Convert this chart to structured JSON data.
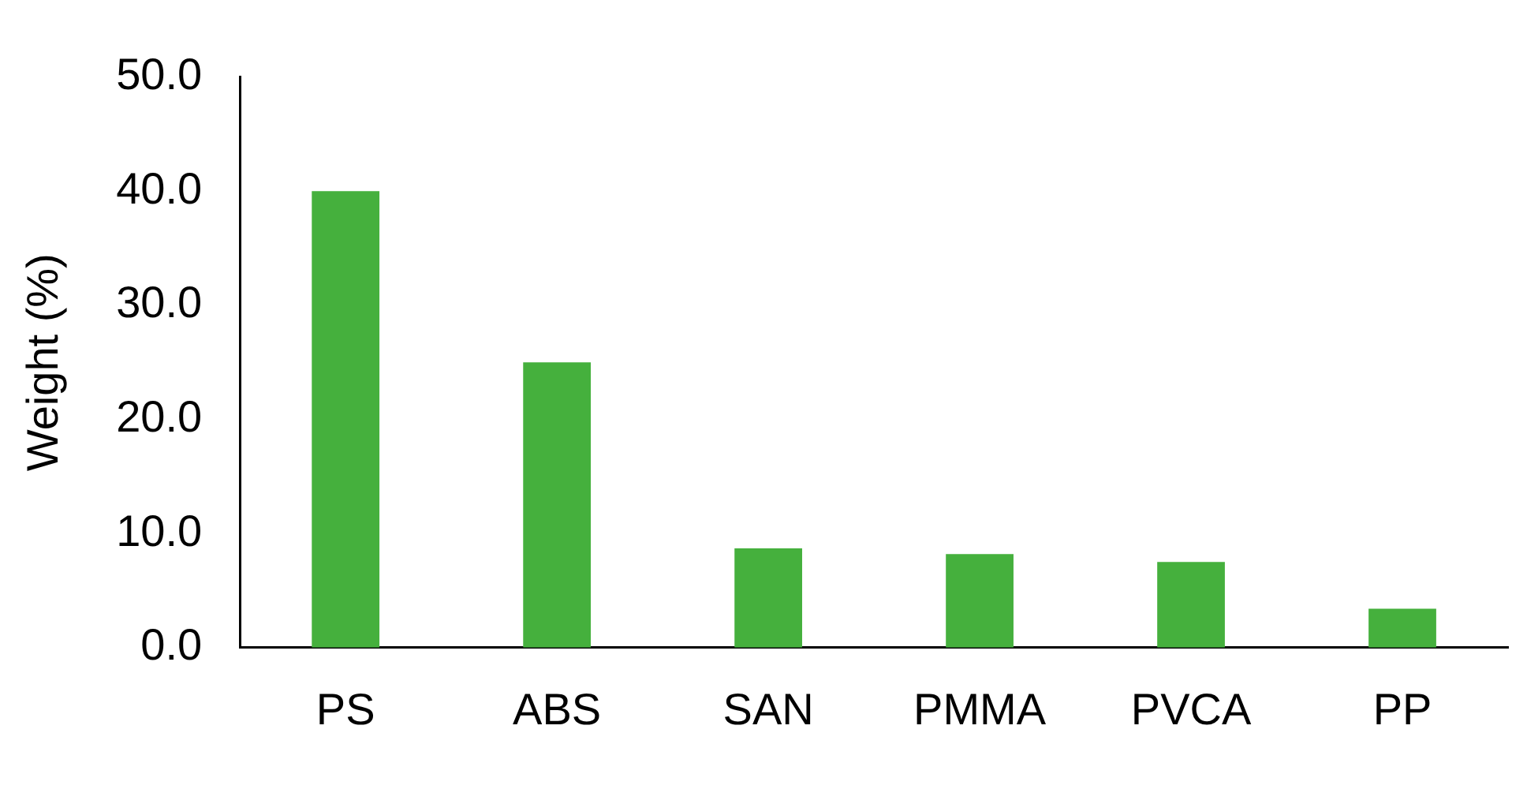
{
  "chart_data": {
    "type": "bar",
    "ylabel": "Weight (%)",
    "categories": [
      "PS",
      "ABS",
      "SAN",
      "PMMA",
      "PVCA",
      "PP"
    ],
    "values": [
      40.0,
      25.0,
      8.7,
      8.2,
      7.5,
      3.4
    ],
    "color": "#45b03d",
    "ylim": [
      0,
      50
    ],
    "yticks": [
      {
        "value": 0,
        "label": "0.0"
      },
      {
        "value": 10,
        "label": "10.0"
      },
      {
        "value": 20,
        "label": "20.0"
      },
      {
        "value": 30,
        "label": "30.0"
      },
      {
        "value": 40,
        "label": "40.0"
      },
      {
        "value": 50,
        "label": "50.0"
      }
    ],
    "grid": false,
    "legend": false
  }
}
